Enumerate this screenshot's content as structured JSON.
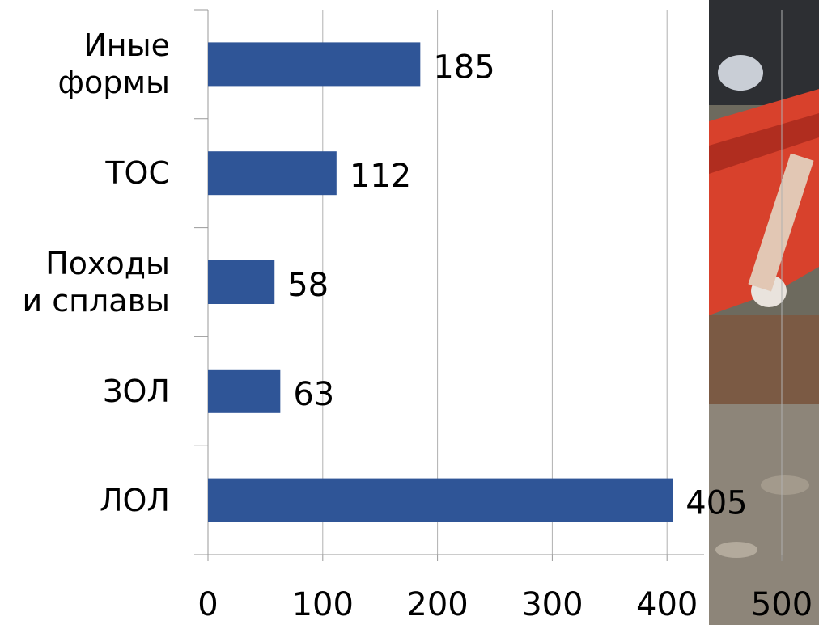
{
  "chart_data": {
    "type": "barh",
    "categories": [
      "Иные\nформы",
      "ТОС",
      "Походы\nи сплавы",
      "ЗОЛ",
      "ЛОЛ"
    ],
    "values": [
      185,
      112,
      58,
      63,
      405
    ],
    "color": "#2f5597",
    "xlim": [
      0,
      500
    ],
    "xticks": [
      0,
      100,
      200,
      300,
      400,
      500
    ],
    "grid": true
  }
}
